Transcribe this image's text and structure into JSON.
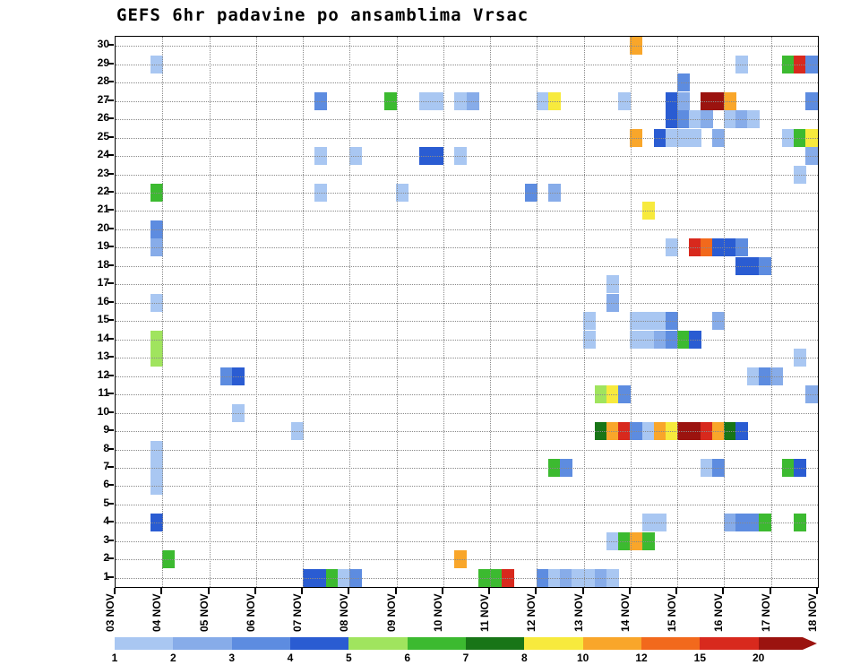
{
  "title": "GEFS 6hr padavine po ansamblima Vrsac",
  "chart_data": {
    "type": "heatmap",
    "description": "GEFS ensemble 6-hour precipitation amounts (mm) per ensemble member (1-30) over time (6hr slots, 03 NOV - 18 NOV) for Vrsac",
    "x_axis": {
      "tick_labels": [
        "03 NOV",
        "04 NOV",
        "05 NOV",
        "06 NOV",
        "07 NOV",
        "08 NOV",
        "09 NOV",
        "10 NOV",
        "11 NOV",
        "12 NOV",
        "13 NOV",
        "14 NOV",
        "15 NOV",
        "16 NOV",
        "17 NOV",
        "18 NOV"
      ],
      "slots_per_day": 4,
      "total_slots": 60
    },
    "y_axis": {
      "tick_labels": [
        "30",
        "29",
        "28",
        "27",
        "26",
        "25",
        "24",
        "23",
        "22",
        "21",
        "20",
        "19",
        "18",
        "17",
        "16",
        "15",
        "14",
        "13",
        "12",
        "11",
        "10",
        "9",
        "8",
        "7",
        "6",
        "5",
        "4",
        "3",
        "2",
        "1"
      ],
      "members": 30
    },
    "legend": {
      "labels": [
        "1",
        "2",
        "3",
        "4",
        "5",
        "6",
        "7",
        "8",
        "10",
        "12",
        "15",
        "20"
      ],
      "colors": [
        "#a9c7f2",
        "#87ace9",
        "#5d8ce0",
        "#2a5cd2",
        "#a0e45e",
        "#3cba30",
        "#187517",
        "#f7ea3d",
        "#f9a62a",
        "#f2691c",
        "#d8291d",
        "#9b130f"
      ]
    },
    "grid_color": "#8a8a8a",
    "cells": [
      [
        30,
        44,
        8
      ],
      [
        29,
        3,
        0
      ],
      [
        29,
        53,
        0
      ],
      [
        29,
        57,
        5
      ],
      [
        29,
        58,
        10
      ],
      [
        29,
        59,
        2
      ],
      [
        28,
        48,
        2
      ],
      [
        27,
        17,
        2
      ],
      [
        27,
        23,
        5
      ],
      [
        27,
        26,
        0
      ],
      [
        27,
        27,
        0
      ],
      [
        27,
        29,
        0
      ],
      [
        27,
        30,
        1
      ],
      [
        27,
        36,
        0
      ],
      [
        27,
        37,
        7
      ],
      [
        27,
        43,
        0
      ],
      [
        27,
        47,
        3
      ],
      [
        27,
        48,
        1
      ],
      [
        27,
        50,
        11
      ],
      [
        27,
        51,
        11
      ],
      [
        27,
        52,
        8
      ],
      [
        27,
        59,
        2
      ],
      [
        26,
        47,
        3
      ],
      [
        26,
        48,
        2
      ],
      [
        26,
        49,
        0
      ],
      [
        26,
        50,
        1
      ],
      [
        26,
        52,
        0
      ],
      [
        26,
        53,
        1
      ],
      [
        26,
        54,
        0
      ],
      [
        25,
        44,
        8
      ],
      [
        25,
        46,
        3
      ],
      [
        25,
        47,
        0
      ],
      [
        25,
        48,
        0
      ],
      [
        25,
        49,
        0
      ],
      [
        25,
        51,
        1
      ],
      [
        25,
        57,
        0
      ],
      [
        25,
        58,
        5
      ],
      [
        25,
        59,
        7
      ],
      [
        24,
        17,
        0
      ],
      [
        24,
        20,
        0
      ],
      [
        24,
        26,
        3
      ],
      [
        24,
        27,
        3
      ],
      [
        24,
        29,
        0
      ],
      [
        24,
        59,
        1
      ],
      [
        23,
        58,
        0
      ],
      [
        22,
        3,
        5
      ],
      [
        22,
        17,
        0
      ],
      [
        22,
        24,
        0
      ],
      [
        22,
        35,
        2
      ],
      [
        22,
        37,
        1
      ],
      [
        21,
        45,
        7
      ],
      [
        20,
        3,
        2
      ],
      [
        19,
        3,
        1
      ],
      [
        19,
        47,
        0
      ],
      [
        19,
        49,
        10
      ],
      [
        19,
        50,
        9
      ],
      [
        19,
        51,
        3
      ],
      [
        19,
        52,
        3
      ],
      [
        19,
        53,
        2
      ],
      [
        18,
        53,
        3
      ],
      [
        18,
        54,
        3
      ],
      [
        18,
        55,
        2
      ],
      [
        17,
        42,
        0
      ],
      [
        16,
        3,
        0
      ],
      [
        16,
        42,
        1
      ],
      [
        15,
        40,
        0
      ],
      [
        15,
        44,
        0
      ],
      [
        15,
        45,
        0
      ],
      [
        15,
        46,
        0
      ],
      [
        15,
        47,
        2
      ],
      [
        15,
        51,
        1
      ],
      [
        14,
        3,
        4
      ],
      [
        14,
        40,
        0
      ],
      [
        14,
        44,
        0
      ],
      [
        14,
        45,
        0
      ],
      [
        14,
        46,
        1
      ],
      [
        14,
        47,
        2
      ],
      [
        14,
        48,
        5
      ],
      [
        14,
        49,
        3
      ],
      [
        13,
        3,
        4
      ],
      [
        13,
        58,
        0
      ],
      [
        12,
        9,
        2
      ],
      [
        12,
        10,
        3
      ],
      [
        12,
        54,
        0
      ],
      [
        12,
        55,
        2
      ],
      [
        12,
        56,
        1
      ],
      [
        11,
        41,
        4
      ],
      [
        11,
        42,
        7
      ],
      [
        11,
        43,
        2
      ],
      [
        11,
        59,
        1
      ],
      [
        10,
        10,
        0
      ],
      [
        9,
        15,
        0
      ],
      [
        9,
        41,
        6
      ],
      [
        9,
        42,
        8
      ],
      [
        9,
        43,
        10
      ],
      [
        9,
        44,
        2
      ],
      [
        9,
        45,
        0
      ],
      [
        9,
        46,
        8
      ],
      [
        9,
        47,
        7
      ],
      [
        9,
        48,
        11
      ],
      [
        9,
        49,
        11
      ],
      [
        9,
        50,
        10
      ],
      [
        9,
        51,
        8
      ],
      [
        9,
        52,
        6
      ],
      [
        9,
        53,
        3
      ],
      [
        8,
        3,
        0
      ],
      [
        7,
        3,
        0
      ],
      [
        7,
        37,
        5
      ],
      [
        7,
        38,
        2
      ],
      [
        7,
        50,
        0
      ],
      [
        7,
        51,
        2
      ],
      [
        7,
        57,
        5
      ],
      [
        7,
        58,
        3
      ],
      [
        6,
        3,
        0
      ],
      [
        4,
        3,
        3
      ],
      [
        4,
        45,
        0
      ],
      [
        4,
        46,
        0
      ],
      [
        4,
        52,
        1
      ],
      [
        4,
        53,
        2
      ],
      [
        4,
        54,
        2
      ],
      [
        4,
        55,
        5
      ],
      [
        4,
        58,
        5
      ],
      [
        3,
        42,
        0
      ],
      [
        3,
        43,
        5
      ],
      [
        3,
        44,
        8
      ],
      [
        3,
        45,
        5
      ],
      [
        2,
        4,
        5
      ],
      [
        2,
        29,
        8
      ],
      [
        1,
        16,
        3
      ],
      [
        1,
        17,
        3
      ],
      [
        1,
        18,
        5
      ],
      [
        1,
        19,
        0
      ],
      [
        1,
        20,
        2
      ],
      [
        1,
        31,
        5
      ],
      [
        1,
        32,
        5
      ],
      [
        1,
        33,
        10
      ],
      [
        1,
        36,
        2
      ],
      [
        1,
        37,
        0
      ],
      [
        1,
        38,
        1
      ],
      [
        1,
        39,
        0
      ],
      [
        1,
        40,
        0
      ],
      [
        1,
        41,
        1
      ],
      [
        1,
        42,
        0
      ]
    ]
  }
}
